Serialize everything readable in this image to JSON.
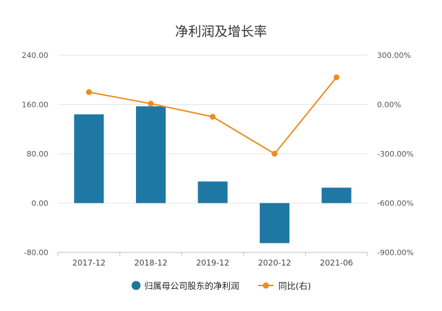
{
  "chart_data": {
    "type": "bar",
    "title": "净利润及增长率",
    "categories": [
      "2017-12",
      "2018-12",
      "2019-12",
      "2020-12",
      "2021-06"
    ],
    "left_axis": {
      "ticks": [
        "240.00",
        "160.00",
        "80.00",
        "0.00",
        "-80.00"
      ],
      "ylim": [
        -80,
        240
      ]
    },
    "right_axis": {
      "ticks": [
        "300.00%",
        "0.00%",
        "-300.00%",
        "-600.00%",
        "-900.00%"
      ],
      "ylim": [
        -900,
        300
      ]
    },
    "series": [
      {
        "name": "归属母公司股东的净利润",
        "type": "bar",
        "axis": "left",
        "color": "#1f77a4",
        "values": [
          144,
          157,
          35,
          -65,
          25
        ]
      },
      {
        "name": "同比(右)",
        "type": "line",
        "axis": "right",
        "color": "#ee8a1e",
        "values": [
          75,
          5,
          -75,
          -300,
          165
        ]
      }
    ],
    "grid": true,
    "legend_position": "bottom"
  }
}
